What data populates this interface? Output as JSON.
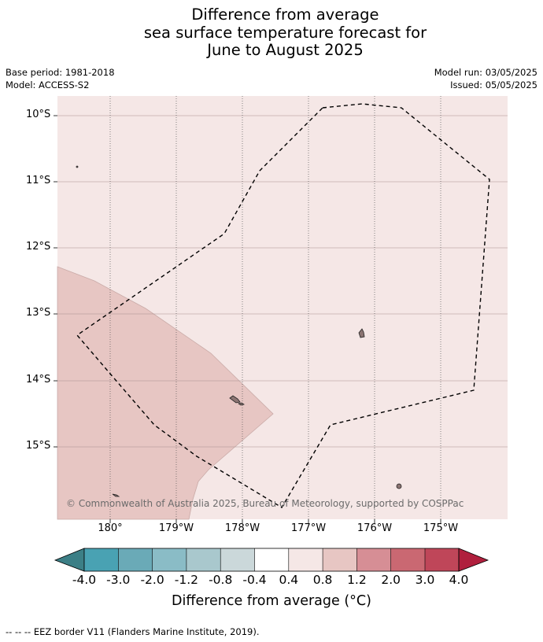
{
  "title": {
    "line1": "Difference from average",
    "line2": "sea surface temperature forecast for",
    "line3": "June to August 2025"
  },
  "meta": {
    "base_period": "Base period: 1981-2018",
    "model": "Model: ACCESS-S2",
    "model_run": "Model run: 03/05/2025",
    "issued": "Issued: 05/05/2025"
  },
  "map": {
    "lat_labels": [
      "10°S",
      "11°S",
      "12°S",
      "13°S",
      "14°S",
      "15°S"
    ],
    "lon_labels": [
      "180°",
      "179°W",
      "178°W",
      "177°W",
      "176°W",
      "175°W"
    ],
    "background_category_color": "#f5e7e6",
    "warm_category_color": "#e7c6c3",
    "copyright": "© Commonwealth of Australia 2025, Bureau of Meteorology, supported by COSPPac"
  },
  "colorbar": {
    "ticks": [
      "-4.0",
      "-3.0",
      "-2.0",
      "-1.2",
      "-0.8",
      "-0.4",
      "0.4",
      "0.8",
      "1.2",
      "2.0",
      "3.0",
      "4.0"
    ],
    "colors": [
      "#3c7f86",
      "#49a2b3",
      "#6aaab7",
      "#8abcc6",
      "#a9c8cd",
      "#cbd8da",
      "#ffffff",
      "#f5e7e6",
      "#e7c6c3",
      "#d68e95",
      "#ca6872",
      "#bf4659",
      "#b01f3d"
    ],
    "label": "Difference from average (°C)"
  },
  "footer": "--  --  -- EEZ border V11 (Flanders Marine Institute, 2019)."
}
